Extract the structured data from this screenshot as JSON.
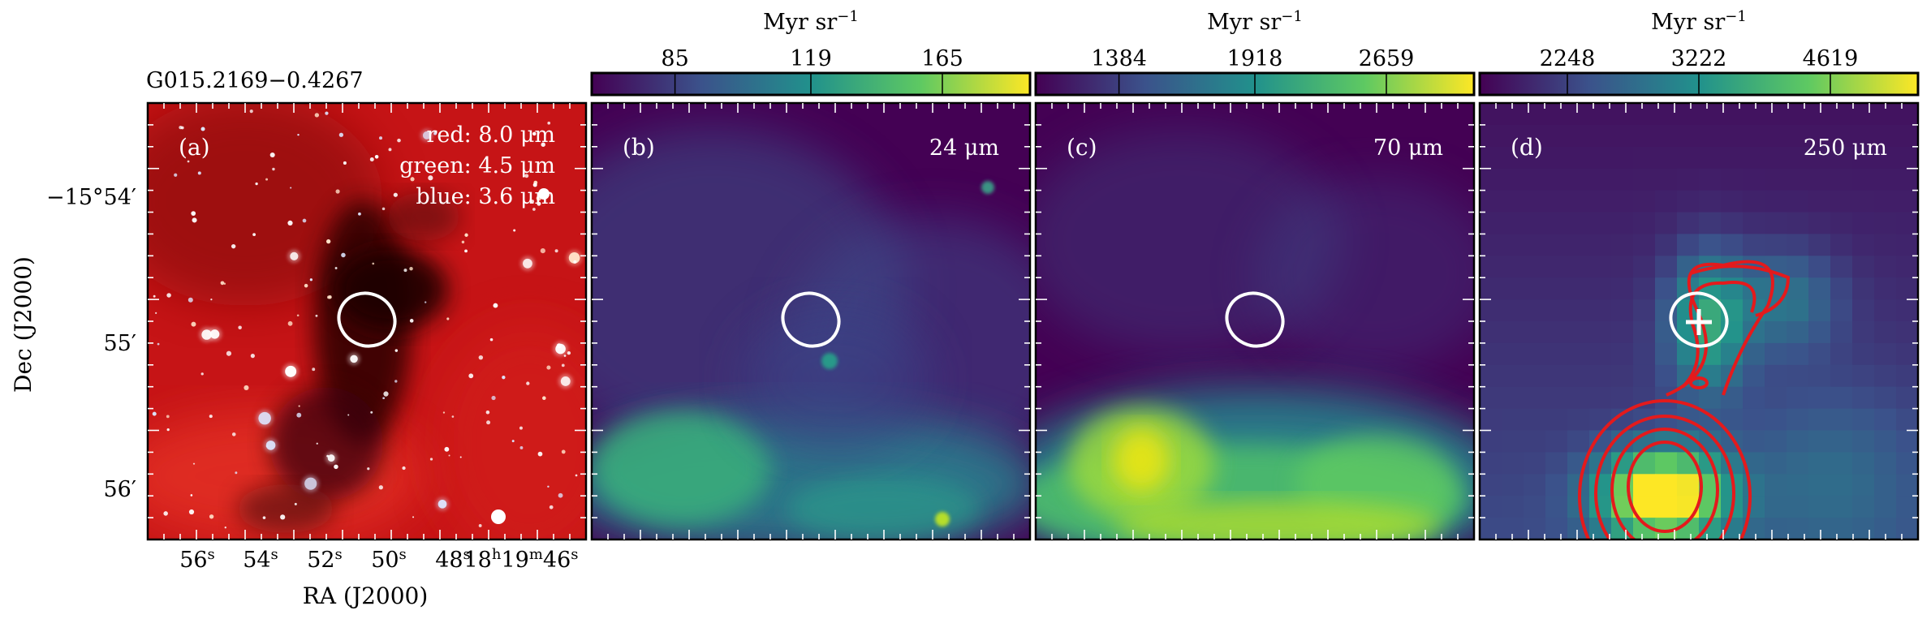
{
  "figure": {
    "source_name": "G015.2169−0.4267",
    "ra_label": "RA (J2000)",
    "dec_label": "Dec (J2000)",
    "ra_ticks": [
      "56",
      "54",
      "52",
      "50",
      "48",
      "18h19m46s"
    ],
    "dec_ticks": [
      "−15°54′",
      "55′",
      "56′"
    ]
  },
  "panels": [
    {
      "id": "a",
      "label": "(a)",
      "kind": "rgb",
      "legend": [
        "red: 8.0 μm",
        "green: 4.5 μm",
        "blue: 3.6 μm"
      ],
      "ellipse": true,
      "base_color": "#c61416"
    },
    {
      "id": "b",
      "label": "(b)",
      "kind": "map",
      "band": "24 μm",
      "colorbar_unit": "Myr sr",
      "colorbar_exp": "−1",
      "colorbar_ticks": [
        "85",
        "119",
        "165"
      ],
      "colorbar_ticks_pos": [
        0.19,
        0.5,
        0.8
      ],
      "ellipse": true
    },
    {
      "id": "c",
      "label": "(c)",
      "kind": "map",
      "band": "70 μm",
      "colorbar_unit": "Myr sr",
      "colorbar_exp": "−1",
      "colorbar_ticks": [
        "1384",
        "1918",
        "2659"
      ],
      "colorbar_ticks_pos": [
        0.19,
        0.5,
        0.8
      ],
      "ellipse": true
    },
    {
      "id": "d",
      "label": "(d)",
      "kind": "map",
      "band": "250 μm",
      "colorbar_unit": "Myr sr",
      "colorbar_exp": "−1",
      "colorbar_ticks": [
        "2248",
        "3222",
        "4619"
      ],
      "colorbar_ticks_pos": [
        0.2,
        0.5,
        0.8
      ],
      "ellipse": true,
      "cross": true,
      "contours": true
    }
  ],
  "colors": {
    "viridis": [
      "#440154",
      "#3b528b",
      "#21918c",
      "#5ec962",
      "#fde725"
    ],
    "rgb_base": "#c61416",
    "contour": "#e41a1c",
    "marker": "#ffffff"
  },
  "chart_data": {
    "type": "heatmap",
    "colormap": "viridis",
    "maps": [
      {
        "panel": "b",
        "band": "24 μm",
        "unit": "Myr sr^-1",
        "colorbar_ticks": [
          85,
          119,
          165
        ]
      },
      {
        "panel": "c",
        "band": "70 μm",
        "unit": "Myr sr^-1",
        "colorbar_ticks": [
          1384,
          1918,
          2659
        ]
      },
      {
        "panel": "d",
        "band": "250 μm",
        "unit": "Myr sr^-1",
        "colorbar_ticks": [
          2248,
          3222,
          4619
        ]
      }
    ],
    "rgb_composite": {
      "panel": "a",
      "red": "8.0 μm",
      "green": "4.5 μm",
      "blue": "3.6 μm"
    },
    "ra_tick_labels": [
      "56s",
      "54s",
      "52s",
      "50s",
      "48s",
      "18h19m46s"
    ],
    "dec_tick_labels": [
      "−15°54′",
      "55′",
      "56′"
    ]
  }
}
